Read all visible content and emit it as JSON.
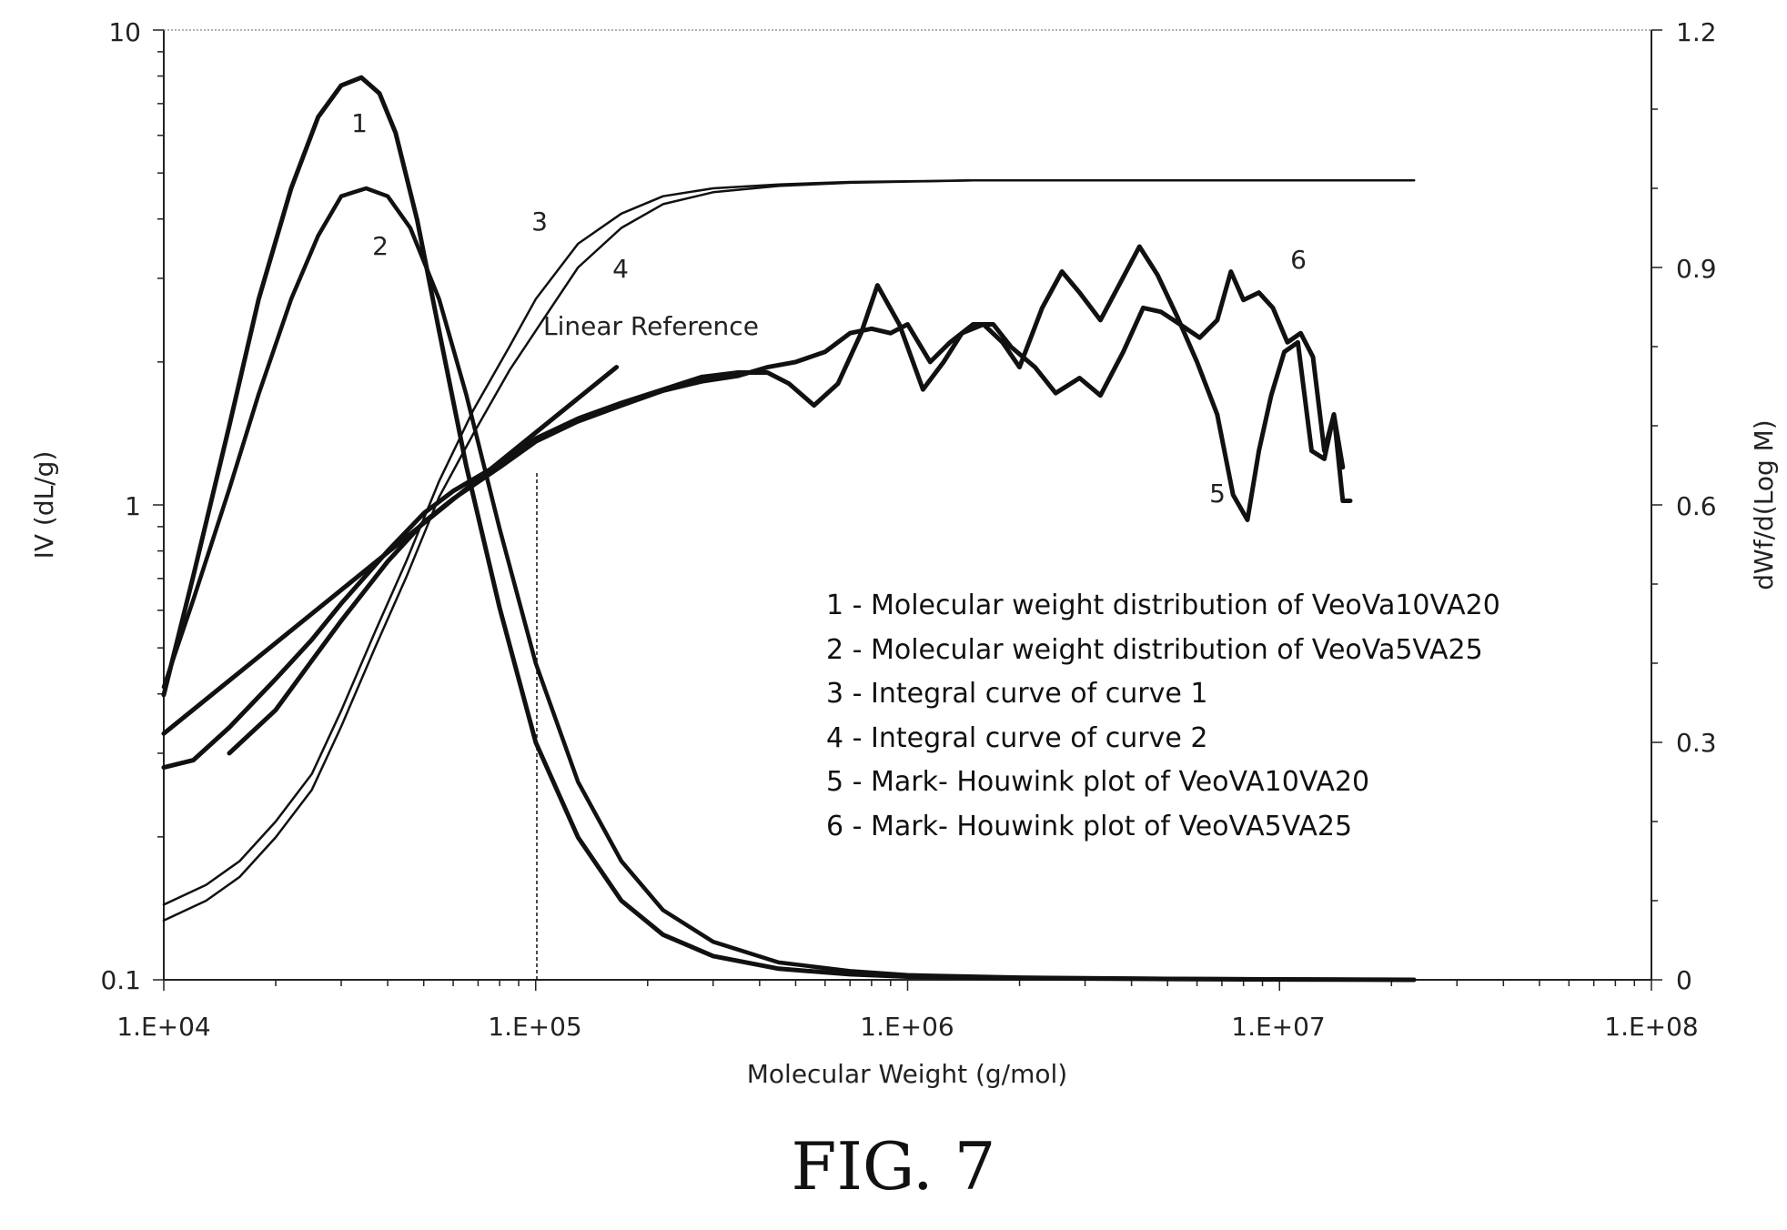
{
  "figure_caption": "FIG. 7",
  "chart_data": {
    "type": "line",
    "xlabel": "Molecular Weight (g/mol)",
    "ylabel_left": "IV (dL/g)",
    "ylabel_right": "dWf/d(Log M)",
    "x_scale": "log",
    "xlim": [
      10000,
      100000000
    ],
    "x_ticks": [
      "1.E+04",
      "1.E+05",
      "1.E+06",
      "1.E+07",
      "1.E+08"
    ],
    "y_left_scale": "log",
    "y_left_lim": [
      0.1,
      10
    ],
    "y_left_ticks": [
      "0.1",
      "1",
      "10"
    ],
    "y_right_scale": "linear",
    "y_right_lim": [
      0,
      1.2
    ],
    "y_right_ticks": [
      "0",
      "0.3",
      "0.6",
      "0.9",
      "1.2"
    ],
    "grid": false,
    "legend_position": "lower-right",
    "legend": [
      "1 - Molecular weight distribution of VeoVa10VA20",
      "2 - Molecular weight distribution of VeoVa5VA25",
      "3 - Integral curve of curve 1",
      "4 - Integral curve of curve 2",
      "5 - Mark- Houwink plot of VeoVA10VA20",
      "6 - Mark- Houwink plot of VeoVA5VA25"
    ],
    "annotations": {
      "linear_reference": "Linear Reference",
      "curve_labels": [
        "1",
        "2",
        "3",
        "4",
        "5",
        "6"
      ]
    },
    "series": [
      {
        "axis": "right",
        "x": [
          10000,
          12000,
          15000,
          18000,
          22000,
          26000,
          30000,
          34000,
          38000,
          42000,
          48000,
          55000,
          65000,
          80000,
          100000,
          130000,
          170000,
          220000,
          300000,
          450000,
          700000,
          1000000,
          2000000,
          5000000,
          10000000,
          23000000
        ],
        "y": [
          0.36,
          0.51,
          0.7,
          0.86,
          1.0,
          1.09,
          1.13,
          1.14,
          1.12,
          1.07,
          0.96,
          0.82,
          0.65,
          0.47,
          0.3,
          0.18,
          0.1,
          0.057,
          0.03,
          0.014,
          0.007,
          0.004,
          0.002,
          0.001,
          0.0005,
          0
        ]
      },
      {
        "axis": "right",
        "x": [
          10000,
          12000,
          15000,
          18000,
          22000,
          26000,
          30000,
          35000,
          40000,
          46000,
          55000,
          65000,
          80000,
          100000,
          130000,
          170000,
          220000,
          300000,
          450000,
          700000,
          1000000,
          2000000,
          5000000,
          10000000,
          23000000
        ],
        "y": [
          0.37,
          0.48,
          0.62,
          0.74,
          0.86,
          0.94,
          0.99,
          1.0,
          0.99,
          0.95,
          0.86,
          0.74,
          0.57,
          0.4,
          0.25,
          0.15,
          0.088,
          0.048,
          0.022,
          0.011,
          0.006,
          0.003,
          0.0015,
          0.0008,
          0
        ]
      },
      {
        "axis": "right",
        "x": [
          10000,
          13000,
          16000,
          20000,
          25000,
          30000,
          37000,
          45000,
          55000,
          68000,
          85000,
          100000,
          130000,
          170000,
          220000,
          300000,
          450000,
          700000,
          1500000,
          5000000,
          23000000
        ],
        "y": [
          0.095,
          0.12,
          0.15,
          0.2,
          0.26,
          0.34,
          0.44,
          0.53,
          0.63,
          0.72,
          0.8,
          0.86,
          0.93,
          0.968,
          0.99,
          1.0,
          1.005,
          1.008,
          1.01,
          1.01,
          1.01
        ]
      },
      {
        "axis": "right",
        "x": [
          10000,
          13000,
          16000,
          20000,
          25000,
          30000,
          37000,
          45000,
          55000,
          68000,
          85000,
          100000,
          130000,
          170000,
          220000,
          300000,
          450000,
          700000,
          1500000,
          5000000,
          23000000
        ],
        "y": [
          0.075,
          0.1,
          0.13,
          0.18,
          0.24,
          0.32,
          0.42,
          0.51,
          0.61,
          0.69,
          0.77,
          0.82,
          0.9,
          0.95,
          0.98,
          0.995,
          1.003,
          1.007,
          1.01,
          1.01,
          1.01
        ]
      },
      {
        "axis": "left",
        "x": [
          10000,
          12000,
          15000,
          20000,
          25000,
          30000,
          40000,
          50000,
          60000,
          80000,
          100000,
          130000,
          170000,
          220000,
          280000,
          350000,
          420000,
          480000,
          560000,
          650000,
          750000,
          830000,
          950000,
          1100000,
          1250000,
          1400000,
          1600000,
          1800000,
          2000000,
          2300000,
          2600000,
          2900000,
          3300000,
          3700000,
          4200000,
          4700000,
          5300000,
          6000000,
          6800000,
          7500000,
          8200000,
          8800000,
          9500000,
          10300000,
          11200000,
          12200000,
          13200000,
          14000000,
          14800000,
          15500000
        ],
        "y": [
          0.28,
          0.29,
          0.34,
          0.43,
          0.52,
          0.62,
          0.8,
          0.96,
          1.07,
          1.22,
          1.38,
          1.52,
          1.64,
          1.75,
          1.86,
          1.9,
          1.9,
          1.8,
          1.62,
          1.8,
          2.3,
          2.9,
          2.4,
          1.75,
          2.0,
          2.3,
          2.4,
          2.2,
          1.95,
          2.6,
          3.1,
          2.8,
          2.45,
          2.9,
          3.5,
          3.05,
          2.5,
          2.0,
          1.55,
          1.05,
          0.93,
          1.3,
          1.7,
          2.1,
          2.2,
          1.3,
          1.25,
          1.55,
          1.02,
          1.02
        ]
      },
      {
        "axis": "left",
        "x": [
          15000,
          20000,
          25000,
          30000,
          40000,
          50000,
          60000,
          80000,
          100000,
          130000,
          170000,
          220000,
          280000,
          350000,
          420000,
          500000,
          600000,
          700000,
          800000,
          900000,
          1000000,
          1150000,
          1300000,
          1500000,
          1700000,
          1900000,
          2200000,
          2500000,
          2900000,
          3300000,
          3800000,
          4300000,
          4800000,
          5400000,
          6100000,
          6800000,
          7400000,
          8000000,
          8800000,
          9600000,
          10500000,
          11400000,
          12300000,
          13200000,
          14000000,
          14800000
        ],
        "y": [
          0.3,
          0.37,
          0.47,
          0.57,
          0.76,
          0.92,
          1.03,
          1.2,
          1.36,
          1.5,
          1.62,
          1.74,
          1.82,
          1.87,
          1.95,
          2.0,
          2.1,
          2.3,
          2.35,
          2.3,
          2.4,
          2.0,
          2.2,
          2.4,
          2.4,
          2.15,
          1.95,
          1.72,
          1.85,
          1.7,
          2.1,
          2.6,
          2.55,
          2.4,
          2.25,
          2.45,
          3.1,
          2.7,
          2.8,
          2.6,
          2.2,
          2.3,
          2.05,
          1.3,
          1.55,
          1.2
        ]
      },
      {
        "axis": "left",
        "x": [
          10000,
          165000
        ],
        "y": [
          0.33,
          1.95
        ]
      }
    ]
  }
}
